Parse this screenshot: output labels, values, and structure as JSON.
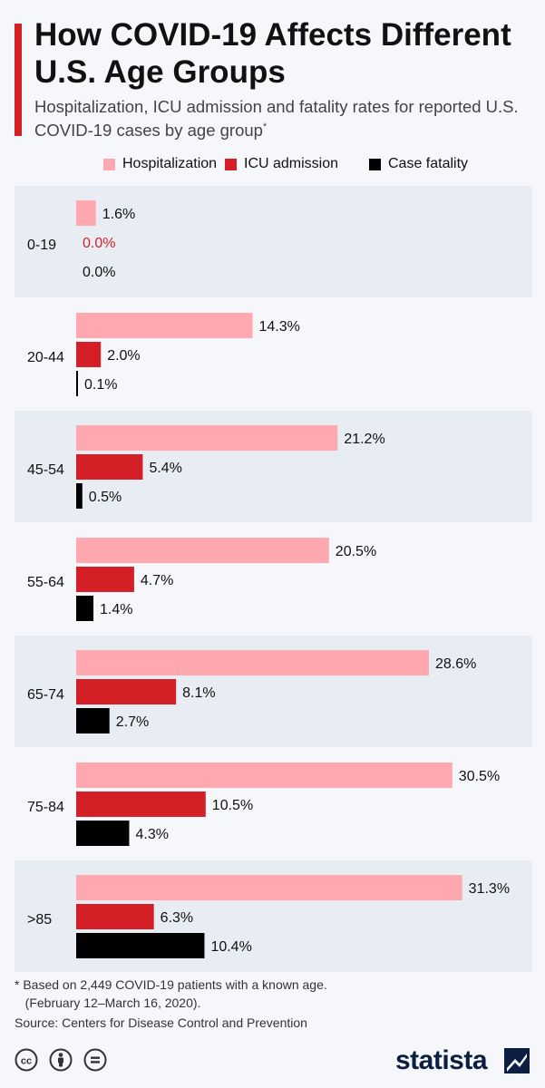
{
  "header": {
    "title": "How COVID-19 Affects Different U.S. Age Groups",
    "subtitle": "Hospitalization, ICU admission and fatality rates for reported U.S. COVID-19 cases by age group",
    "subtitle_mark": "*"
  },
  "colors": {
    "accent": "#d51f26",
    "hospitalization": "#ffa8b0",
    "icu": "#d51f26",
    "fatality": "#000000",
    "band": "#e8ecf3"
  },
  "chart_data": {
    "type": "bar",
    "orientation": "horizontal",
    "categories": [
      "0-19",
      "20-44",
      "45-54",
      "55-64",
      "65-74",
      "75-84",
      ">85"
    ],
    "series": [
      {
        "name": "Hospitalization",
        "values": [
          1.6,
          14.3,
          21.2,
          20.5,
          28.6,
          30.5,
          31.3
        ],
        "labels": [
          "1.6%",
          "14.3%",
          "21.2%",
          "20.5%",
          "28.6%",
          "30.5%",
          "31.3%"
        ]
      },
      {
        "name": "ICU admission",
        "values": [
          0.0,
          2.0,
          5.4,
          4.7,
          8.1,
          10.5,
          6.3
        ],
        "labels": [
          "0.0%",
          "2.0%",
          "5.4%",
          "4.7%",
          "8.1%",
          "10.5%",
          "6.3%"
        ]
      },
      {
        "name": "Case fatality",
        "values": [
          0.0,
          0.1,
          0.5,
          1.4,
          2.7,
          4.3,
          10.4
        ],
        "labels": [
          "0.0%",
          "0.1%",
          "0.5%",
          "1.4%",
          "2.7%",
          "4.3%",
          "10.4%"
        ]
      }
    ],
    "legend_position": "top",
    "grid": false
  },
  "footer": {
    "footnote": "* Based on 2,449 COVID-19 patients with a known age.\n   (February 12–March 16, 2020).",
    "source": "Source: Centers for Disease Control and Prevention",
    "brand": "statista",
    "license_icons": [
      "cc-icon",
      "by-icon",
      "nd-icon"
    ]
  }
}
